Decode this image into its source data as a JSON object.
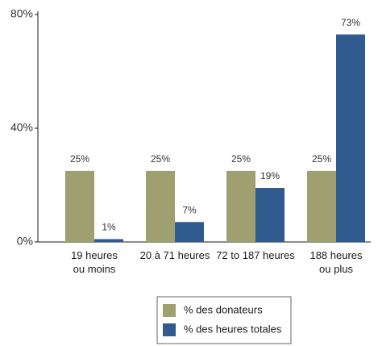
{
  "chart_data": {
    "type": "bar",
    "categories": [
      "19 heures\nou moins",
      "20 à 71 heures",
      "72 to 187 heures",
      "188 heures\nou plus"
    ],
    "series": [
      {
        "name": "% des donateurs",
        "color": "#9fa070",
        "values": [
          25,
          25,
          25,
          25
        ],
        "value_labels": [
          "25%",
          "25%",
          "25%",
          "25%"
        ]
      },
      {
        "name": "% des heures totales",
        "color": "#2f5b8e",
        "values": [
          1,
          7,
          19,
          73
        ],
        "value_labels": [
          "1%",
          "7%",
          "19%",
          "73%"
        ]
      }
    ],
    "ylim": [
      0,
      80
    ],
    "yticks": [
      {
        "value": 0,
        "label": "0%"
      },
      {
        "value": 40,
        "label": "40%"
      },
      {
        "value": 80,
        "label": "80%"
      }
    ],
    "grid": false,
    "legend": "bottom"
  }
}
